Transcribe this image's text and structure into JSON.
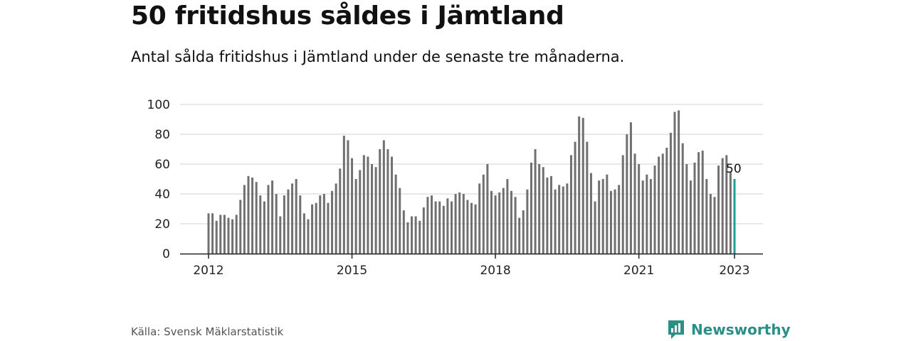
{
  "header": {
    "title": "50 fritidshus såldes i Jämtland",
    "subtitle": "Antal sålda fritidshus i Jämtland under de senaste tre månaderna."
  },
  "footer": {
    "source": "Källa: Svensk Mäklarstatistik",
    "brand": "Newsworthy"
  },
  "colors": {
    "bar": "#707070",
    "highlight": "#1a9e96",
    "grid": "#d0d0d0",
    "brand": "#2a8f86"
  },
  "chart_data": {
    "type": "bar",
    "x_axis": {
      "ticks": [
        "2012",
        "2015",
        "2018",
        "2021",
        "2023"
      ]
    },
    "y_axis": {
      "range": [
        0,
        100
      ],
      "ticks": [
        0,
        20,
        40,
        60,
        80,
        100
      ]
    },
    "grid": true,
    "x_start": "2012-01",
    "x_end": "2023-01",
    "values": [
      27,
      27,
      22,
      26,
      26,
      24,
      23,
      26,
      36,
      46,
      52,
      51,
      48,
      39,
      35,
      46,
      49,
      40,
      25,
      39,
      43,
      47,
      50,
      39,
      27,
      23,
      33,
      34,
      39,
      40,
      34,
      42,
      47,
      57,
      79,
      76,
      64,
      50,
      56,
      66,
      65,
      60,
      58,
      70,
      76,
      70,
      65,
      53,
      44,
      29,
      21,
      25,
      25,
      22,
      31,
      38,
      39,
      35,
      35,
      32,
      37,
      35,
      40,
      41,
      40,
      36,
      34,
      33,
      47,
      53,
      60,
      42,
      39,
      41,
      44,
      50,
      42,
      38,
      24,
      29,
      43,
      61,
      70,
      60,
      58,
      51,
      52,
      43,
      46,
      45,
      47,
      66,
      75,
      92,
      91,
      75,
      54,
      35,
      49,
      50,
      53,
      42,
      43,
      46,
      66,
      80,
      88,
      67,
      60,
      49,
      53,
      50,
      59,
      65,
      67,
      71,
      81,
      95,
      96,
      74,
      60,
      49,
      61,
      68,
      69,
      50,
      40,
      38,
      59,
      64,
      66,
      55,
      50
    ],
    "highlight_label": "50"
  }
}
